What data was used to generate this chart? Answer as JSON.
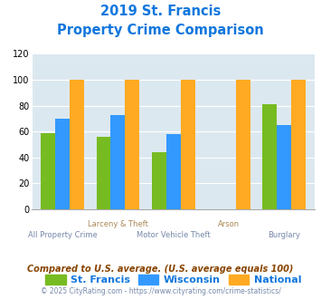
{
  "title_line1": "2019 St. Francis",
  "title_line2": "Property Crime Comparison",
  "categories": [
    "All Property Crime",
    "Larceny & Theft",
    "Motor Vehicle Theft",
    "Arson",
    "Burglary"
  ],
  "values_stfrancis": [
    59,
    56,
    44,
    0,
    81
  ],
  "values_wisconsin": [
    70,
    73,
    58,
    0,
    65
  ],
  "values_national": [
    100,
    100,
    100,
    100,
    100
  ],
  "color_stfrancis": "#77bb22",
  "color_wisconsin": "#3399ff",
  "color_national": "#ffaa22",
  "ylim": [
    0,
    120
  ],
  "yticks": [
    0,
    20,
    40,
    60,
    80,
    100,
    120
  ],
  "legend_labels": [
    "St. Francis",
    "Wisconsin",
    "National"
  ],
  "footnote1": "Compared to U.S. average. (U.S. average equals 100)",
  "footnote2": "© 2025 CityRating.com - https://www.cityrating.com/crime-statistics/",
  "bg_color": "#dce8f0",
  "title_color": "#1177dd",
  "label_color_row1": "#aa8855",
  "label_color_row2": "#7788aa",
  "footnote1_color": "#884400",
  "footnote2_color": "#7788aa",
  "legend_text_color": "#1177dd"
}
